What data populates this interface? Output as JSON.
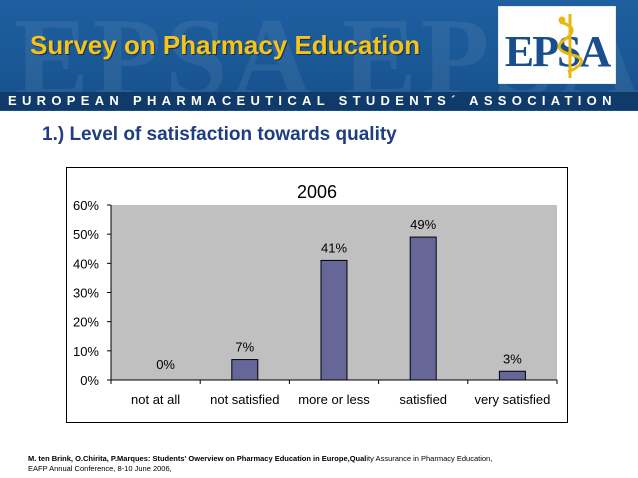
{
  "header": {
    "title": "Survey on Pharmacy Education",
    "association_name": "EUROPEAN PHARMACEUTICAL STUDENTS´ ASSOCIATION",
    "watermark_text": "EPSA",
    "logo_text": "EPSA",
    "logo_icon": "caduceus-icon",
    "colors": {
      "background": "#1a5896",
      "title": "#f7c318",
      "band": "#0f3a6a"
    }
  },
  "slide": {
    "subtitle": "1.) Level of satisfaction towards quality"
  },
  "chart_data": {
    "type": "bar",
    "title": "2006",
    "categories": [
      "not at all",
      "not satisfied",
      "more or less",
      "satisfied",
      "very satisfied"
    ],
    "values": [
      0,
      7,
      41,
      49,
      3
    ],
    "data_labels": [
      "0%",
      "7%",
      "41%",
      "49%",
      "3%"
    ],
    "y_ticks": [
      "0%",
      "10%",
      "20%",
      "30%",
      "40%",
      "50%",
      "60%"
    ],
    "ylim": [
      0,
      60
    ],
    "xlabel": "",
    "ylabel": "",
    "grid": false,
    "bar_color": "#666699",
    "plot_background": "#c0c0c0"
  },
  "footer": {
    "authors_bold": "M. ten Brink, O.Chirita, P.Marques: Students' Owerview on Pharmacy Education in Europe,Qual",
    "authors_rest": "ity Assurance in Pharmacy Education,",
    "line2": "EAFP Annual Conference, 8-10 June 2006,"
  }
}
